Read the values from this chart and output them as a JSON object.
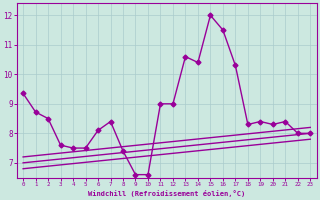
{
  "xlabel": "Windchill (Refroidissement éolien,°C)",
  "background_color": "#cce8e0",
  "line_color": "#990099",
  "series_main": {
    "x": [
      0,
      1,
      2,
      3,
      4,
      5,
      6,
      7,
      8,
      9,
      10,
      11,
      12,
      13,
      14,
      15,
      16,
      17,
      18,
      19,
      20,
      21,
      22,
      23
    ],
    "y": [
      9.35,
      8.72,
      8.5,
      7.6,
      7.5,
      7.5,
      8.1,
      8.4,
      7.4,
      6.6,
      6.6,
      9.0,
      9.0,
      10.6,
      10.4,
      12.0,
      11.5,
      10.3,
      8.3,
      8.4,
      8.3,
      8.4,
      8.0,
      8.0
    ]
  },
  "series_linear": [
    {
      "x": [
        0,
        23
      ],
      "y": [
        6.8,
        7.8
      ]
    },
    {
      "x": [
        0,
        23
      ],
      "y": [
        7.0,
        8.0
      ]
    },
    {
      "x": [
        0,
        23
      ],
      "y": [
        7.2,
        8.2
      ]
    }
  ],
  "ylim": [
    6.5,
    12.4
  ],
  "xlim": [
    -0.5,
    23.5
  ],
  "yticks": [
    7,
    8,
    9,
    10,
    11,
    12
  ],
  "xticks": [
    0,
    1,
    2,
    3,
    4,
    5,
    6,
    7,
    8,
    9,
    10,
    11,
    12,
    13,
    14,
    15,
    16,
    17,
    18,
    19,
    20,
    21,
    22,
    23
  ],
  "grid_color": "#aacccc",
  "marker": "D",
  "markersize": 2.5,
  "linewidth": 1.0
}
